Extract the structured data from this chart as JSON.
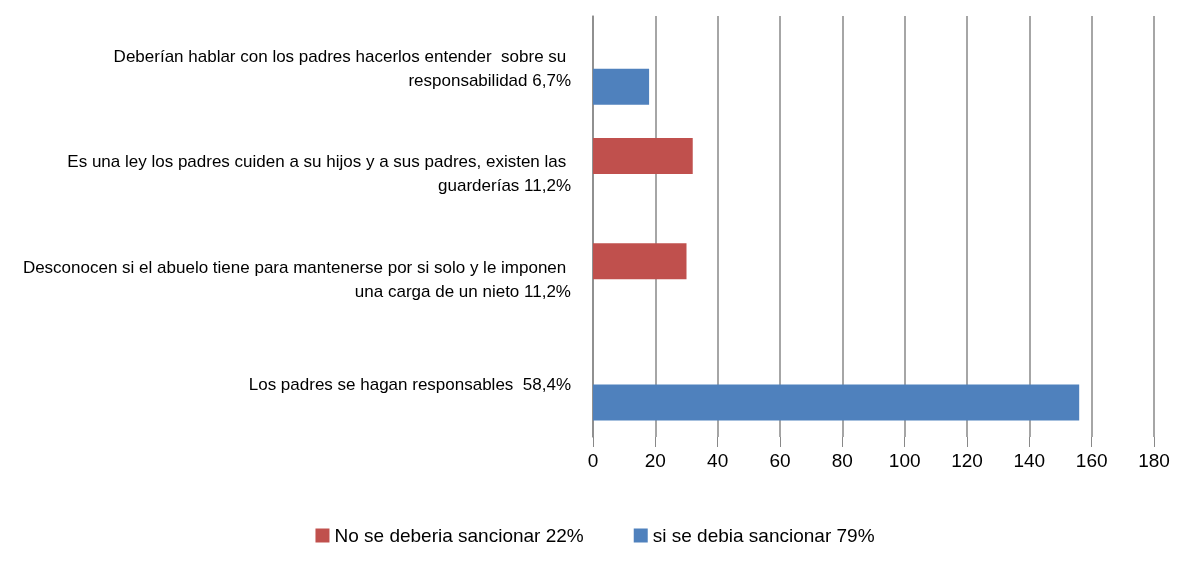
{
  "chart_data": {
    "type": "bar",
    "orientation": "horizontal",
    "categories": [
      "Deberían hablar con los padres hacerlos entender  sobre su responsabilidad 6,7%",
      "Es una ley los padres cuiden a su hijos y a sus padres, existen las guarderías 11,2%",
      "Desconocen si el abuelo tiene para mantenerse por si solo y le imponen una carga de un nieto 11,2%",
      "Los padres se hagan responsables  58,4%"
    ],
    "series": [
      {
        "name": "No se deberia sancionar 22%",
        "color": "#c0504d",
        "values": [
          null,
          32,
          30,
          null
        ]
      },
      {
        "name": "si se debia sancionar 79%",
        "color": "#4f81bd",
        "values": [
          18,
          null,
          null,
          156
        ]
      }
    ],
    "xlim": [
      0,
      180
    ],
    "xticks": [
      0,
      20,
      40,
      60,
      80,
      100,
      120,
      140,
      160,
      180
    ],
    "grid": "x",
    "legend": "bottom"
  }
}
